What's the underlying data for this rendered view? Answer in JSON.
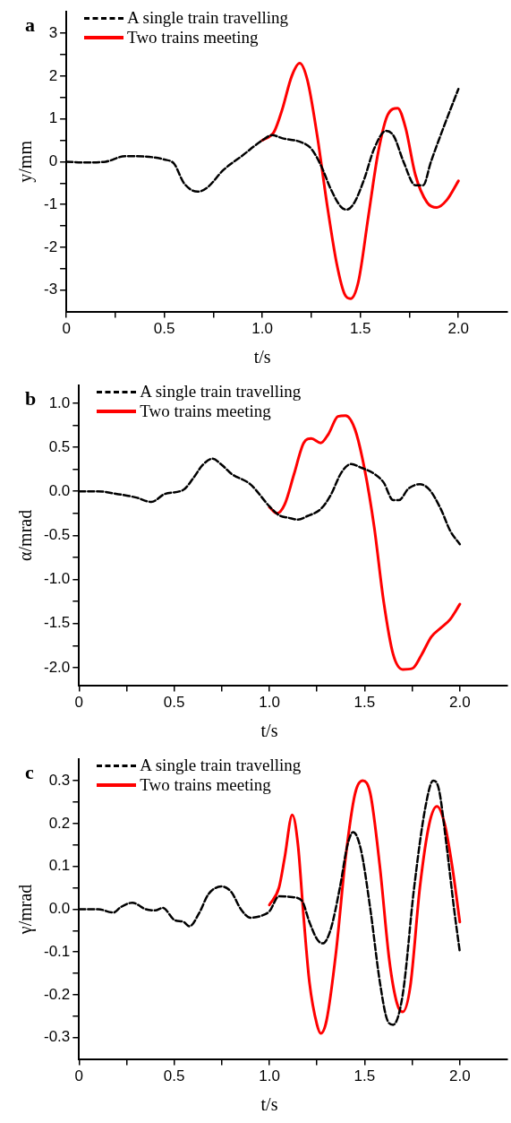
{
  "chart_data": [
    {
      "type": "line",
      "annotations": [
        "a"
      ],
      "xlabel": "t/s",
      "ylabel": "y/mm",
      "xlim": [
        0,
        2.25
      ],
      "xticks": [
        0,
        {
          "value": 0.25,
          "label": null
        },
        0.5,
        {
          "value": 0.75,
          "label": null
        },
        {
          "value": 1,
          "label": "1.0"
        },
        {
          "value": 1.25,
          "label": null
        },
        1.5,
        {
          "value": 1.75,
          "label": null
        },
        {
          "value": 2,
          "label": "2.0"
        }
      ],
      "ylim": [
        -3.5,
        3.5
      ],
      "yticks": [
        -3,
        {
          "value": -2.5,
          "label": null
        },
        -2,
        {
          "value": -1.5,
          "label": null
        },
        -1,
        {
          "value": -0.5,
          "label": null
        },
        0,
        {
          "value": 0.5,
          "label": null
        },
        1,
        {
          "value": 1.5,
          "label": null
        },
        2,
        {
          "value": 2.5,
          "label": null
        },
        3
      ],
      "grid": false,
      "legend": "top left",
      "marker": "none",
      "series": [
        {
          "name": "A single train travelling",
          "color": "#000000",
          "line_style": "dashed",
          "x": [
            0,
            0.1,
            0.2,
            0.3,
            0.4,
            0.5,
            0.55,
            0.6,
            0.67,
            0.72,
            0.8,
            0.9,
            1.0,
            1.05,
            1.1,
            1.2,
            1.25,
            1.3,
            1.35,
            1.4,
            1.43,
            1.47,
            1.52,
            1.57,
            1.63,
            1.67,
            1.72,
            1.78,
            1.82,
            1.86,
            1.92,
            2.0
          ],
          "values": [
            0,
            -0.02,
            0,
            0.13,
            0.12,
            0.05,
            -0.05,
            -0.5,
            -0.7,
            -0.6,
            -0.2,
            0.15,
            0.5,
            0.62,
            0.55,
            0.45,
            0.3,
            -0.1,
            -0.65,
            -1.05,
            -1.12,
            -0.95,
            -0.4,
            0.3,
            0.72,
            0.6,
            0,
            -0.55,
            -0.55,
            0,
            0.75,
            1.7
          ]
        },
        {
          "name": "Two trains meeting",
          "color": "#ff0000",
          "line_style": "solid",
          "x": [
            1.0,
            1.06,
            1.1,
            1.15,
            1.19,
            1.23,
            1.28,
            1.33,
            1.38,
            1.42,
            1.45,
            1.49,
            1.54,
            1.59,
            1.64,
            1.69,
            1.73,
            1.78,
            1.84,
            1.89,
            1.94,
            2.0
          ],
          "values": [
            0.5,
            0.7,
            1.2,
            2.0,
            2.3,
            1.9,
            0.6,
            -1.0,
            -2.4,
            -3.1,
            -3.2,
            -2.8,
            -1.3,
            0.2,
            1.1,
            1.25,
            0.8,
            -0.3,
            -0.95,
            -1.07,
            -0.9,
            -0.45
          ]
        }
      ]
    },
    {
      "type": "line",
      "annotations": [
        "b"
      ],
      "xlabel": "t/s",
      "ylabel": "α/mrad",
      "xlim": [
        0,
        2.25
      ],
      "xticks": [
        0,
        {
          "value": 0.25,
          "label": null
        },
        0.5,
        {
          "value": 0.75,
          "label": null
        },
        {
          "value": 1,
          "label": "1.0"
        },
        {
          "value": 1.25,
          "label": null
        },
        1.5,
        {
          "value": 1.75,
          "label": null
        },
        {
          "value": 2,
          "label": "2.0"
        }
      ],
      "ylim": [
        -2.2,
        1.2
      ],
      "yticks": [
        {
          "value": -2,
          "label": "-2.0"
        },
        {
          "value": -1.75,
          "label": null
        },
        -1.5,
        {
          "value": -1.25,
          "label": null
        },
        {
          "value": -1,
          "label": "-1.0"
        },
        {
          "value": -0.75,
          "label": null
        },
        -0.5,
        {
          "value": -0.25,
          "label": null
        },
        {
          "value": 0,
          "label": "0.0"
        },
        {
          "value": 0.25,
          "label": null
        },
        0.5,
        {
          "value": 0.75,
          "label": null
        },
        {
          "value": 1,
          "label": "1.0"
        }
      ],
      "grid": false,
      "legend": "top left",
      "marker": "none",
      "series": [
        {
          "name": "A single train travelling",
          "color": "#000000",
          "line_style": "dashed",
          "x": [
            0,
            0.1,
            0.2,
            0.3,
            0.38,
            0.45,
            0.55,
            0.6,
            0.65,
            0.7,
            0.75,
            0.8,
            0.9,
            1.0,
            1.05,
            1.1,
            1.15,
            1.2,
            1.27,
            1.32,
            1.38,
            1.43,
            1.48,
            1.55,
            1.6,
            1.65,
            1.68,
            1.73,
            1.79,
            1.84,
            1.9,
            1.95,
            2.0
          ],
          "values": [
            0,
            0,
            -0.03,
            -0.07,
            -0.12,
            -0.03,
            0.02,
            0.15,
            0.3,
            0.37,
            0.3,
            0.2,
            0.08,
            -0.17,
            -0.27,
            -0.3,
            -0.32,
            -0.28,
            -0.2,
            -0.05,
            0.22,
            0.31,
            0.27,
            0.2,
            0.1,
            -0.1,
            -0.1,
            0.03,
            0.08,
            0.02,
            -0.2,
            -0.45,
            -0.6
          ]
        },
        {
          "name": "Two trains meeting",
          "color": "#ff0000",
          "line_style": "solid",
          "x": [
            1.0,
            1.04,
            1.08,
            1.13,
            1.18,
            1.22,
            1.27,
            1.31,
            1.36,
            1.4,
            1.45,
            1.5,
            1.55,
            1.6,
            1.65,
            1.7,
            1.75,
            1.8,
            1.85,
            1.9,
            1.95,
            2.0
          ],
          "values": [
            -0.18,
            -0.25,
            -0.15,
            0.2,
            0.55,
            0.6,
            0.55,
            0.65,
            0.85,
            0.86,
            0.7,
            0.25,
            -0.4,
            -1.25,
            -1.85,
            -2.02,
            -2.01,
            -1.85,
            -1.65,
            -1.55,
            -1.45,
            -1.28
          ]
        }
      ]
    },
    {
      "type": "line",
      "annotations": [
        "c"
      ],
      "xlabel": "t/s",
      "ylabel": "γ/mrad",
      "xlim": [
        0,
        2.25
      ],
      "xticks": [
        0,
        {
          "value": 0.25,
          "label": null
        },
        0.5,
        {
          "value": 0.75,
          "label": null
        },
        {
          "value": 1,
          "label": "1.0"
        },
        {
          "value": 1.25,
          "label": null
        },
        1.5,
        {
          "value": 1.75,
          "label": null
        },
        {
          "value": 2,
          "label": "2.0"
        }
      ],
      "ylim": [
        -0.35,
        0.35
      ],
      "yticks": [
        -0.3,
        {
          "value": -0.25,
          "label": null
        },
        -0.2,
        {
          "value": -0.15,
          "label": null
        },
        -0.1,
        {
          "value": -0.05,
          "label": null
        },
        {
          "value": 0,
          "label": "0.0"
        },
        {
          "value": 0.05,
          "label": null
        },
        0.1,
        {
          "value": 0.15,
          "label": null
        },
        0.2,
        {
          "value": 0.25,
          "label": null
        },
        0.3
      ],
      "grid": false,
      "legend": "top left",
      "marker": "none",
      "series": [
        {
          "name": "A single train travelling",
          "color": "#000000",
          "line_style": "dashed",
          "x": [
            0,
            0.1,
            0.18,
            0.22,
            0.28,
            0.35,
            0.4,
            0.44,
            0.5,
            0.55,
            0.58,
            0.63,
            0.68,
            0.75,
            0.8,
            0.85,
            0.9,
            0.96,
            1.0,
            1.05,
            1.12,
            1.17,
            1.21,
            1.25,
            1.28,
            1.32,
            1.37,
            1.41,
            1.44,
            1.48,
            1.53,
            1.58,
            1.62,
            1.65,
            1.7,
            1.76,
            1.82,
            1.86,
            1.89,
            1.93,
            1.97,
            2.0
          ],
          "values": [
            0,
            0,
            -0.008,
            0.005,
            0.015,
            0,
            -0.003,
            0.003,
            -0.025,
            -0.03,
            -0.04,
            -0.01,
            0.035,
            0.053,
            0.04,
            0,
            -0.02,
            -0.015,
            -0.005,
            0.03,
            0.028,
            0.02,
            -0.03,
            -0.07,
            -0.08,
            -0.05,
            0.05,
            0.15,
            0.18,
            0.14,
            0,
            -0.17,
            -0.26,
            -0.27,
            -0.2,
            0.05,
            0.24,
            0.3,
            0.28,
            0.15,
            0,
            -0.1
          ]
        },
        {
          "name": "Two trains meeting",
          "color": "#ff0000",
          "line_style": "solid",
          "x": [
            1.0,
            1.05,
            1.08,
            1.12,
            1.15,
            1.18,
            1.21,
            1.25,
            1.27,
            1.3,
            1.35,
            1.4,
            1.45,
            1.49,
            1.53,
            1.58,
            1.63,
            1.67,
            1.7,
            1.74,
            1.79,
            1.84,
            1.88,
            1.92,
            1.96,
            2.0
          ],
          "values": [
            0.01,
            0.05,
            0.12,
            0.22,
            0.15,
            -0.02,
            -0.17,
            -0.27,
            -0.29,
            -0.26,
            -0.1,
            0.12,
            0.27,
            0.3,
            0.27,
            0.1,
            -0.12,
            -0.22,
            -0.24,
            -0.18,
            0.05,
            0.2,
            0.24,
            0.2,
            0.1,
            -0.03
          ]
        }
      ]
    }
  ]
}
